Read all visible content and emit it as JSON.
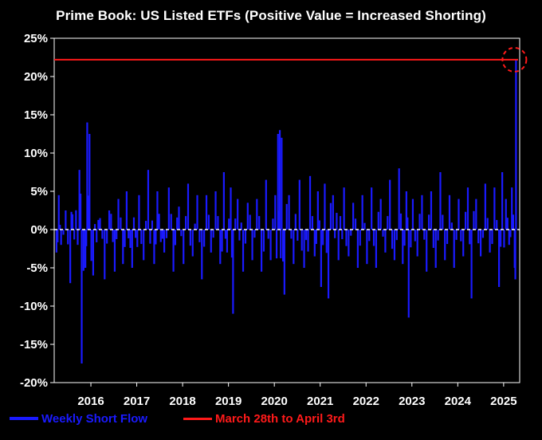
{
  "chart_data": {
    "type": "bar",
    "title": "Prime Book: US Listed ETFs (Positive Value = Increased Shorting)",
    "xlabel": "",
    "ylabel": "",
    "x_range": [
      2015.2,
      2025.35
    ],
    "ylim": [
      -20,
      25
    ],
    "y_ticks": [
      25,
      20,
      15,
      10,
      5,
      0,
      -5,
      -10,
      -15,
      -20
    ],
    "y_tick_labels": [
      "25%",
      "20%",
      "15%",
      "10%",
      "5%",
      "0%",
      "-5%",
      "-10%",
      "-15%",
      "-20%"
    ],
    "x_ticks": [
      2016,
      2017,
      2018,
      2019,
      2020,
      2021,
      2022,
      2023,
      2024,
      2025
    ],
    "x_tick_labels": [
      "2016",
      "2017",
      "2018",
      "2019",
      "2020",
      "2021",
      "2022",
      "2023",
      "2024",
      "2025"
    ],
    "grid": false,
    "zero_line": {
      "value": 0,
      "style": "dashed",
      "color": "#ffffff"
    },
    "series": [
      {
        "name": "Weekly Short Flow",
        "color": "#1a1aff",
        "points": [
          {
            "x": 2015.25,
            "y": -3
          },
          {
            "x": 2015.3,
            "y": 4.5
          },
          {
            "x": 2015.35,
            "y": -2
          },
          {
            "x": 2015.45,
            "y": 2.5
          },
          {
            "x": 2015.55,
            "y": -7
          },
          {
            "x": 2015.6,
            "y": 2
          },
          {
            "x": 2015.75,
            "y": 7.8
          },
          {
            "x": 2015.8,
            "y": -17.5
          },
          {
            "x": 2015.88,
            "y": -5
          },
          {
            "x": 2015.92,
            "y": 14
          },
          {
            "x": 2015.97,
            "y": 12.5
          },
          {
            "x": 2016.05,
            "y": -6
          },
          {
            "x": 2016.2,
            "y": 1.5
          },
          {
            "x": 2016.3,
            "y": -6.5
          },
          {
            "x": 2016.4,
            "y": 2.5
          },
          {
            "x": 2016.52,
            "y": -5.5
          },
          {
            "x": 2016.6,
            "y": 4
          },
          {
            "x": 2016.7,
            "y": -4.5
          },
          {
            "x": 2016.78,
            "y": 5
          },
          {
            "x": 2016.9,
            "y": -5
          },
          {
            "x": 2017.05,
            "y": 4.5
          },
          {
            "x": 2017.15,
            "y": -4
          },
          {
            "x": 2017.25,
            "y": 7.8
          },
          {
            "x": 2017.38,
            "y": -4.5
          },
          {
            "x": 2017.45,
            "y": 5
          },
          {
            "x": 2017.6,
            "y": -3
          },
          {
            "x": 2017.7,
            "y": 5.5
          },
          {
            "x": 2017.8,
            "y": -5.5
          },
          {
            "x": 2017.92,
            "y": 3
          },
          {
            "x": 2018.02,
            "y": -4.5
          },
          {
            "x": 2018.12,
            "y": 6
          },
          {
            "x": 2018.22,
            "y": -3.5
          },
          {
            "x": 2018.32,
            "y": 4.5
          },
          {
            "x": 2018.42,
            "y": -6.5
          },
          {
            "x": 2018.52,
            "y": 4.5
          },
          {
            "x": 2018.62,
            "y": -3
          },
          {
            "x": 2018.72,
            "y": 5
          },
          {
            "x": 2018.82,
            "y": -4.5
          },
          {
            "x": 2018.9,
            "y": 7.5
          },
          {
            "x": 2018.97,
            "y": -3
          },
          {
            "x": 2019.05,
            "y": 5.5
          },
          {
            "x": 2019.1,
            "y": -11
          },
          {
            "x": 2019.2,
            "y": 4
          },
          {
            "x": 2019.32,
            "y": -5.5
          },
          {
            "x": 2019.42,
            "y": 3.5
          },
          {
            "x": 2019.52,
            "y": -4
          },
          {
            "x": 2019.62,
            "y": 4
          },
          {
            "x": 2019.72,
            "y": -5.5
          },
          {
            "x": 2019.82,
            "y": 6.5
          },
          {
            "x": 2019.92,
            "y": -4
          },
          {
            "x": 2020.02,
            "y": 4.5
          },
          {
            "x": 2020.08,
            "y": 12.5
          },
          {
            "x": 2020.12,
            "y": 13
          },
          {
            "x": 2020.16,
            "y": 12
          },
          {
            "x": 2020.22,
            "y": -8.5
          },
          {
            "x": 2020.32,
            "y": 4.5
          },
          {
            "x": 2020.42,
            "y": -4.5
          },
          {
            "x": 2020.55,
            "y": 6.5
          },
          {
            "x": 2020.65,
            "y": -5
          },
          {
            "x": 2020.78,
            "y": 7
          },
          {
            "x": 2020.88,
            "y": -3.5
          },
          {
            "x": 2020.95,
            "y": 5
          },
          {
            "x": 2021.02,
            "y": -7.5
          },
          {
            "x": 2021.1,
            "y": 6
          },
          {
            "x": 2021.18,
            "y": -9
          },
          {
            "x": 2021.28,
            "y": 4.5
          },
          {
            "x": 2021.4,
            "y": -4
          },
          {
            "x": 2021.52,
            "y": 5.5
          },
          {
            "x": 2021.62,
            "y": -3.5
          },
          {
            "x": 2021.72,
            "y": 3.5
          },
          {
            "x": 2021.82,
            "y": -5
          },
          {
            "x": 2021.92,
            "y": 4.5
          },
          {
            "x": 2022.02,
            "y": -4.5
          },
          {
            "x": 2022.12,
            "y": 5.5
          },
          {
            "x": 2022.22,
            "y": -5
          },
          {
            "x": 2022.32,
            "y": 4
          },
          {
            "x": 2022.42,
            "y": -3
          },
          {
            "x": 2022.52,
            "y": 6.5
          },
          {
            "x": 2022.62,
            "y": -4
          },
          {
            "x": 2022.72,
            "y": 8
          },
          {
            "x": 2022.8,
            "y": -4.5
          },
          {
            "x": 2022.88,
            "y": 5
          },
          {
            "x": 2022.93,
            "y": -11.5
          },
          {
            "x": 2023.02,
            "y": 4
          },
          {
            "x": 2023.12,
            "y": -3.5
          },
          {
            "x": 2023.22,
            "y": 4.5
          },
          {
            "x": 2023.32,
            "y": -5.5
          },
          {
            "x": 2023.42,
            "y": 5
          },
          {
            "x": 2023.52,
            "y": -5
          },
          {
            "x": 2023.62,
            "y": 7.5
          },
          {
            "x": 2023.72,
            "y": -4
          },
          {
            "x": 2023.82,
            "y": 4.5
          },
          {
            "x": 2023.92,
            "y": -5
          },
          {
            "x": 2024.02,
            "y": 4
          },
          {
            "x": 2024.12,
            "y": -3.5
          },
          {
            "x": 2024.22,
            "y": 5.5
          },
          {
            "x": 2024.3,
            "y": -9
          },
          {
            "x": 2024.4,
            "y": 4
          },
          {
            "x": 2024.5,
            "y": -3.5
          },
          {
            "x": 2024.6,
            "y": 6
          },
          {
            "x": 2024.7,
            "y": -3
          },
          {
            "x": 2024.8,
            "y": 5.5
          },
          {
            "x": 2024.9,
            "y": -7.5
          },
          {
            "x": 2024.97,
            "y": 7.5
          },
          {
            "x": 2025.05,
            "y": 4
          },
          {
            "x": 2025.12,
            "y": -2
          },
          {
            "x": 2025.18,
            "y": 5.5
          },
          {
            "x": 2025.24,
            "y": -5
          },
          {
            "x": 2025.27,
            "y": 22.2
          }
        ]
      },
      {
        "name": "March 28th to April 3rd",
        "color": "#ff1a1a",
        "type": "hline",
        "y": 22.2
      }
    ],
    "annotations": [
      {
        "type": "dashed-circle",
        "x": 2025.27,
        "y": 22.2,
        "color": "#ff1a1a"
      }
    ],
    "legend": {
      "placement": "bottom",
      "entries": [
        "Weekly Short Flow",
        "March 28th to April 3rd"
      ]
    }
  }
}
